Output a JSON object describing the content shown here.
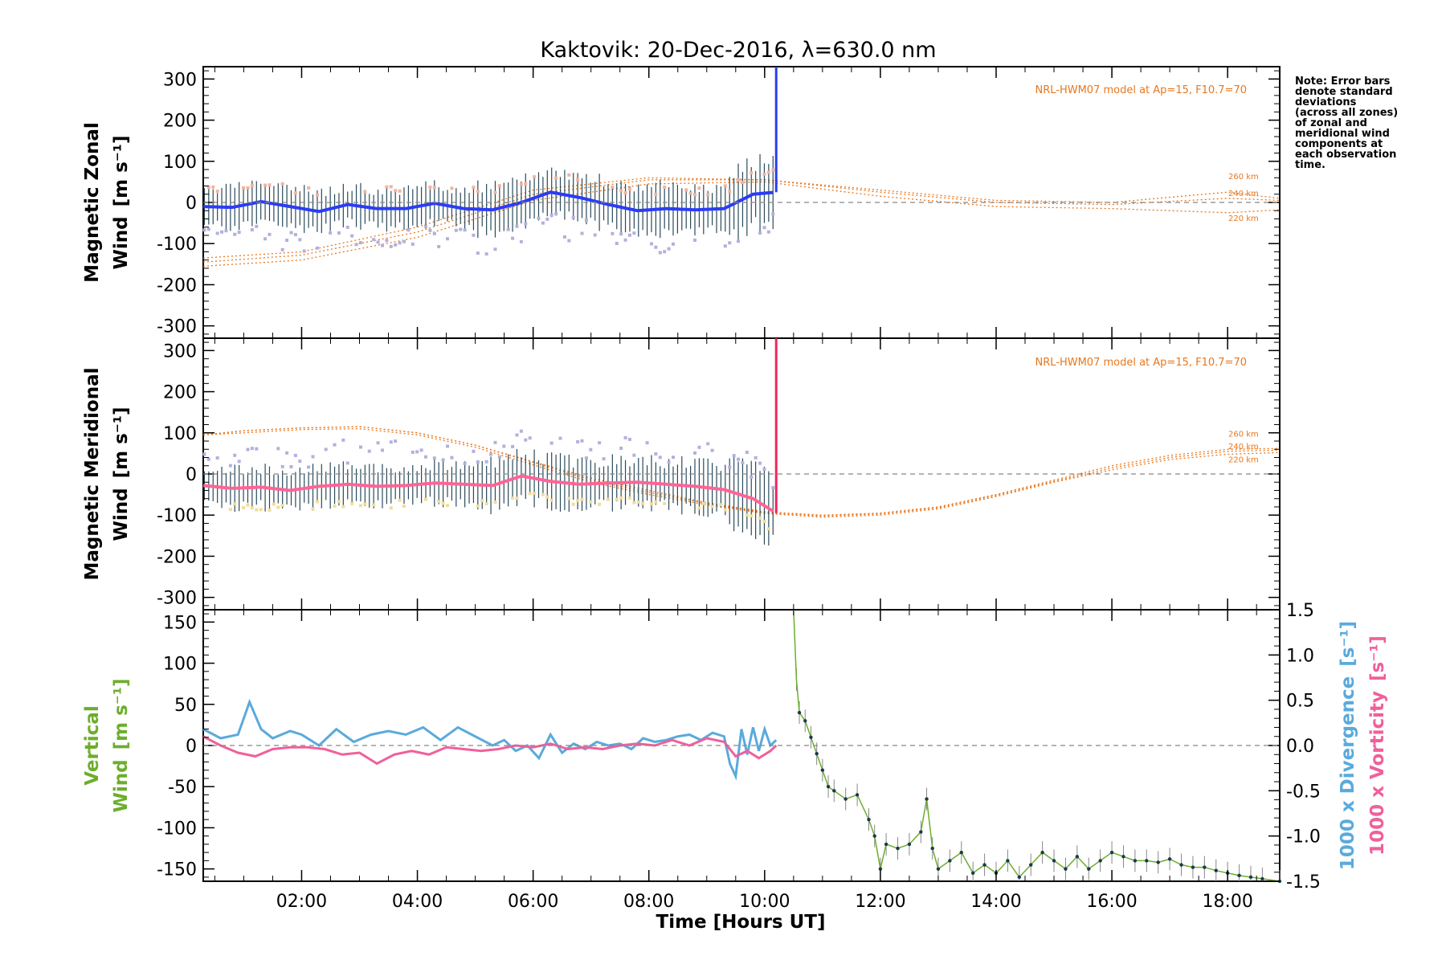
{
  "title": "Kaktovik: 20-Dec-2016, λ=630.0 nm",
  "note": [
    "Note: Error bars",
    "denote standard",
    "deviations",
    "(across all zones)",
    "of zonal and",
    "meridional wind",
    "components at",
    "each observation",
    "time."
  ],
  "model_label": "NRL-HWM07 model at Ap=15, F10.7=70",
  "colors": {
    "zonal": "#2b3cf5",
    "zonal_light": "#59b4e6",
    "meridional": "#f2245c",
    "meridional_pink": "#ff6496",
    "vertical": "#6cae2c",
    "divergence": "#5aaadc",
    "vorticity": "#f0609a",
    "model": "#e8781e",
    "scatter": "#b4b0dc",
    "scatter_tan": "#f0dc9c",
    "errorbar": "#2a4a5a"
  },
  "chart_data": [
    {
      "type": "line",
      "panel": "zonal",
      "ylabel_line1": "Magnetic Zonal",
      "ylabel_line2": "Wind",
      "ylabel_units": "[m s⁻¹]",
      "ylim": [
        -330,
        330
      ],
      "yticks": [
        300,
        200,
        100,
        0,
        -100,
        -200,
        -300
      ],
      "xlim": [
        0.3,
        18.9
      ],
      "series": [
        {
          "type": "line",
          "x": [
            0.3,
            0.8,
            1.3,
            1.8,
            2.3,
            2.8,
            3.3,
            3.8,
            4.3,
            4.8,
            5.3,
            5.8,
            6.3,
            6.8,
            7.3,
            7.8,
            8.3,
            8.8,
            9.3,
            9.8,
            10.2
          ],
          "y": [
            -10,
            -12,
            2,
            -10,
            -22,
            -5,
            -15,
            -15,
            -2,
            -15,
            -18,
            0,
            25,
            12,
            -5,
            -20,
            -15,
            -18,
            -15,
            20,
            25
          ]
        }
      ],
      "model_curves": [
        {
          "label": "260 km",
          "x": [
            0.3,
            2,
            4,
            6,
            8,
            10,
            12,
            14,
            16,
            18,
            18.9
          ],
          "y": [
            -135,
            -120,
            -60,
            30,
            60,
            55,
            30,
            5,
            0,
            25,
            10
          ]
        },
        {
          "label": "240 km",
          "x": [
            0.3,
            2,
            4,
            6,
            8,
            10,
            12,
            14,
            16,
            18,
            18.9
          ],
          "y": [
            -145,
            -128,
            -72,
            20,
            55,
            55,
            25,
            0,
            -5,
            10,
            5
          ]
        },
        {
          "label": "220 km",
          "x": [
            0.3,
            2,
            4,
            6,
            8,
            10,
            12,
            14,
            16,
            18,
            18.9
          ],
          "y": [
            -155,
            -140,
            -85,
            5,
            45,
            50,
            15,
            -10,
            -15,
            -25,
            -18
          ]
        }
      ]
    },
    {
      "type": "line",
      "panel": "meridional",
      "ylabel_line1": "Magnetic Meridional",
      "ylabel_line2": "Wind",
      "ylabel_units": "[m s⁻¹]",
      "ylim": [
        -330,
        330
      ],
      "yticks": [
        300,
        200,
        100,
        0,
        -100,
        -200,
        -300
      ],
      "xlim": [
        0.3,
        18.9
      ],
      "series": [
        {
          "type": "line",
          "x": [
            0.3,
            0.8,
            1.3,
            1.8,
            2.3,
            2.8,
            3.3,
            3.8,
            4.3,
            4.8,
            5.3,
            5.8,
            6.3,
            6.8,
            7.3,
            7.8,
            8.3,
            8.8,
            9.3,
            9.8,
            10.2
          ],
          "y": [
            -28,
            -35,
            -32,
            -40,
            -30,
            -25,
            -30,
            -28,
            -22,
            -25,
            -28,
            -5,
            -18,
            -25,
            -22,
            -20,
            -25,
            -30,
            -38,
            -60,
            -95
          ]
        }
      ],
      "model_curves": [
        {
          "label": "260 km",
          "x": [
            0.3,
            1,
            2,
            3,
            4,
            5,
            6,
            7,
            8,
            9,
            10,
            11,
            12,
            13,
            14,
            15,
            16,
            17,
            18,
            18.9
          ],
          "y": [
            95,
            105,
            112,
            115,
            100,
            70,
            30,
            -10,
            -40,
            -70,
            -92,
            -100,
            -95,
            -80,
            -50,
            -15,
            20,
            45,
            60,
            62
          ]
        },
        {
          "label": "240 km",
          "x": [
            0.3,
            1,
            2,
            3,
            4,
            5,
            6,
            7,
            8,
            9,
            10,
            11,
            12,
            13,
            14,
            15,
            16,
            17,
            18,
            18.9
          ],
          "y": [
            95,
            105,
            112,
            115,
            100,
            70,
            28,
            -15,
            -45,
            -72,
            -94,
            -102,
            -97,
            -82,
            -52,
            -18,
            15,
            40,
            55,
            58
          ]
        },
        {
          "label": "220 km",
          "x": [
            0.3,
            1,
            2,
            3,
            4,
            5,
            6,
            7,
            8,
            9,
            10,
            11,
            12,
            13,
            14,
            15,
            16,
            17,
            18,
            18.9
          ],
          "y": [
            95,
            100,
            108,
            110,
            95,
            65,
            22,
            -20,
            -50,
            -75,
            -96,
            -105,
            -100,
            -85,
            -55,
            -20,
            10,
            35,
            48,
            52
          ]
        }
      ]
    },
    {
      "type": "line",
      "panel": "vertical",
      "ylabel_line1": "Vertical",
      "ylabel_line2": "Wind",
      "ylabel_units": "[m s⁻¹]",
      "ylabel_right_div": "1000 x Divergence",
      "ylabel_right_vort": "1000 x Vorticity",
      "ylabel_right_units": "[s⁻¹]",
      "ylim": [
        -165,
        165
      ],
      "yticks": [
        150,
        100,
        50,
        0,
        -50,
        -100,
        -150
      ],
      "ylim_right": [
        -1.5,
        1.5
      ],
      "yticks_right": [
        1.5,
        1.0,
        0.5,
        0.0,
        -0.5,
        -1.0,
        -1.5
      ],
      "xlim": [
        0.3,
        18.9
      ],
      "xticks": [
        "02:00",
        "04:00",
        "06:00",
        "08:00",
        "10:00",
        "12:00",
        "14:00",
        "16:00",
        "18:00"
      ],
      "xtick_values": [
        2,
        4,
        6,
        8,
        10,
        12,
        14,
        16,
        18
      ],
      "xlabel": "Time [Hours UT]",
      "series": [
        {
          "name": "Vertical Wind",
          "x": [
            10.5,
            10.55,
            10.6,
            10.7,
            10.8,
            10.9,
            11.0,
            11.1,
            11.2,
            11.4,
            11.6,
            11.8,
            11.9,
            12.0,
            12.1,
            12.3,
            12.5,
            12.7,
            12.8,
            12.9,
            13.0,
            13.2,
            13.4,
            13.6,
            13.8,
            14.0,
            14.2,
            14.4,
            14.6,
            14.8,
            15.0,
            15.2,
            15.4,
            15.6,
            15.8,
            16.0,
            16.2,
            16.4,
            16.6,
            16.8,
            17.0,
            17.2,
            17.4,
            17.6,
            17.8,
            18.0,
            18.2,
            18.4,
            18.6,
            18.9
          ],
          "y": [
            165,
            80,
            40,
            30,
            10,
            -10,
            -30,
            -50,
            -55,
            -65,
            -60,
            -90,
            -110,
            -150,
            -120,
            -125,
            -120,
            -105,
            -65,
            -125,
            -150,
            -140,
            -130,
            -155,
            -145,
            -155,
            -140,
            -160,
            -145,
            -130,
            -140,
            -150,
            -135,
            -150,
            -140,
            -130,
            -135,
            -140,
            -140,
            -142,
            -138,
            -145,
            -148,
            -148,
            -152,
            -155,
            -158,
            -160,
            -162,
            -165
          ]
        },
        {
          "name": "1000 x Divergence",
          "axis": "right",
          "x": [
            0.3,
            0.6,
            0.9,
            1.1,
            1.3,
            1.5,
            1.8,
            2.0,
            2.3,
            2.6,
            2.9,
            3.2,
            3.5,
            3.8,
            4.1,
            4.4,
            4.7,
            5.0,
            5.3,
            5.5,
            5.7,
            5.9,
            6.1,
            6.3,
            6.5,
            6.7,
            6.9,
            7.1,
            7.3,
            7.5,
            7.7,
            7.9,
            8.1,
            8.3,
            8.5,
            8.7,
            8.9,
            9.1,
            9.3,
            9.4,
            9.5,
            9.6,
            9.7,
            9.8,
            9.9,
            10.0,
            10.1,
            10.2
          ],
          "y": [
            0.18,
            0.08,
            0.12,
            0.48,
            0.18,
            0.08,
            0.16,
            0.12,
            0.0,
            0.18,
            0.04,
            0.12,
            0.16,
            0.12,
            0.2,
            0.06,
            0.2,
            0.1,
            0.0,
            0.06,
            -0.06,
            0.0,
            -0.14,
            0.12,
            -0.08,
            0.02,
            -0.04,
            0.04,
            0.0,
            0.02,
            -0.04,
            0.08,
            0.04,
            0.06,
            0.1,
            0.12,
            0.06,
            0.14,
            0.1,
            -0.2,
            -0.34,
            0.18,
            -0.1,
            0.2,
            -0.06,
            0.18,
            0.0,
            0.06
          ]
        },
        {
          "name": "1000 x Vorticity",
          "axis": "right",
          "x": [
            0.3,
            0.6,
            0.9,
            1.2,
            1.5,
            1.8,
            2.1,
            2.4,
            2.7,
            3.0,
            3.3,
            3.6,
            3.9,
            4.2,
            4.5,
            4.8,
            5.1,
            5.4,
            5.7,
            6.0,
            6.3,
            6.6,
            6.9,
            7.2,
            7.5,
            7.8,
            8.1,
            8.4,
            8.7,
            9.0,
            9.3,
            9.5,
            9.7,
            9.9,
            10.1,
            10.2
          ],
          "y": [
            0.1,
            0.0,
            -0.08,
            -0.12,
            -0.04,
            -0.02,
            -0.02,
            -0.04,
            -0.1,
            -0.08,
            -0.2,
            -0.1,
            -0.06,
            -0.1,
            -0.02,
            -0.04,
            -0.06,
            -0.04,
            0.0,
            -0.02,
            0.02,
            -0.04,
            -0.02,
            -0.04,
            0.0,
            0.02,
            0.0,
            0.06,
            0.0,
            0.08,
            0.04,
            -0.12,
            -0.06,
            -0.14,
            -0.06,
            0.0
          ]
        }
      ]
    }
  ]
}
